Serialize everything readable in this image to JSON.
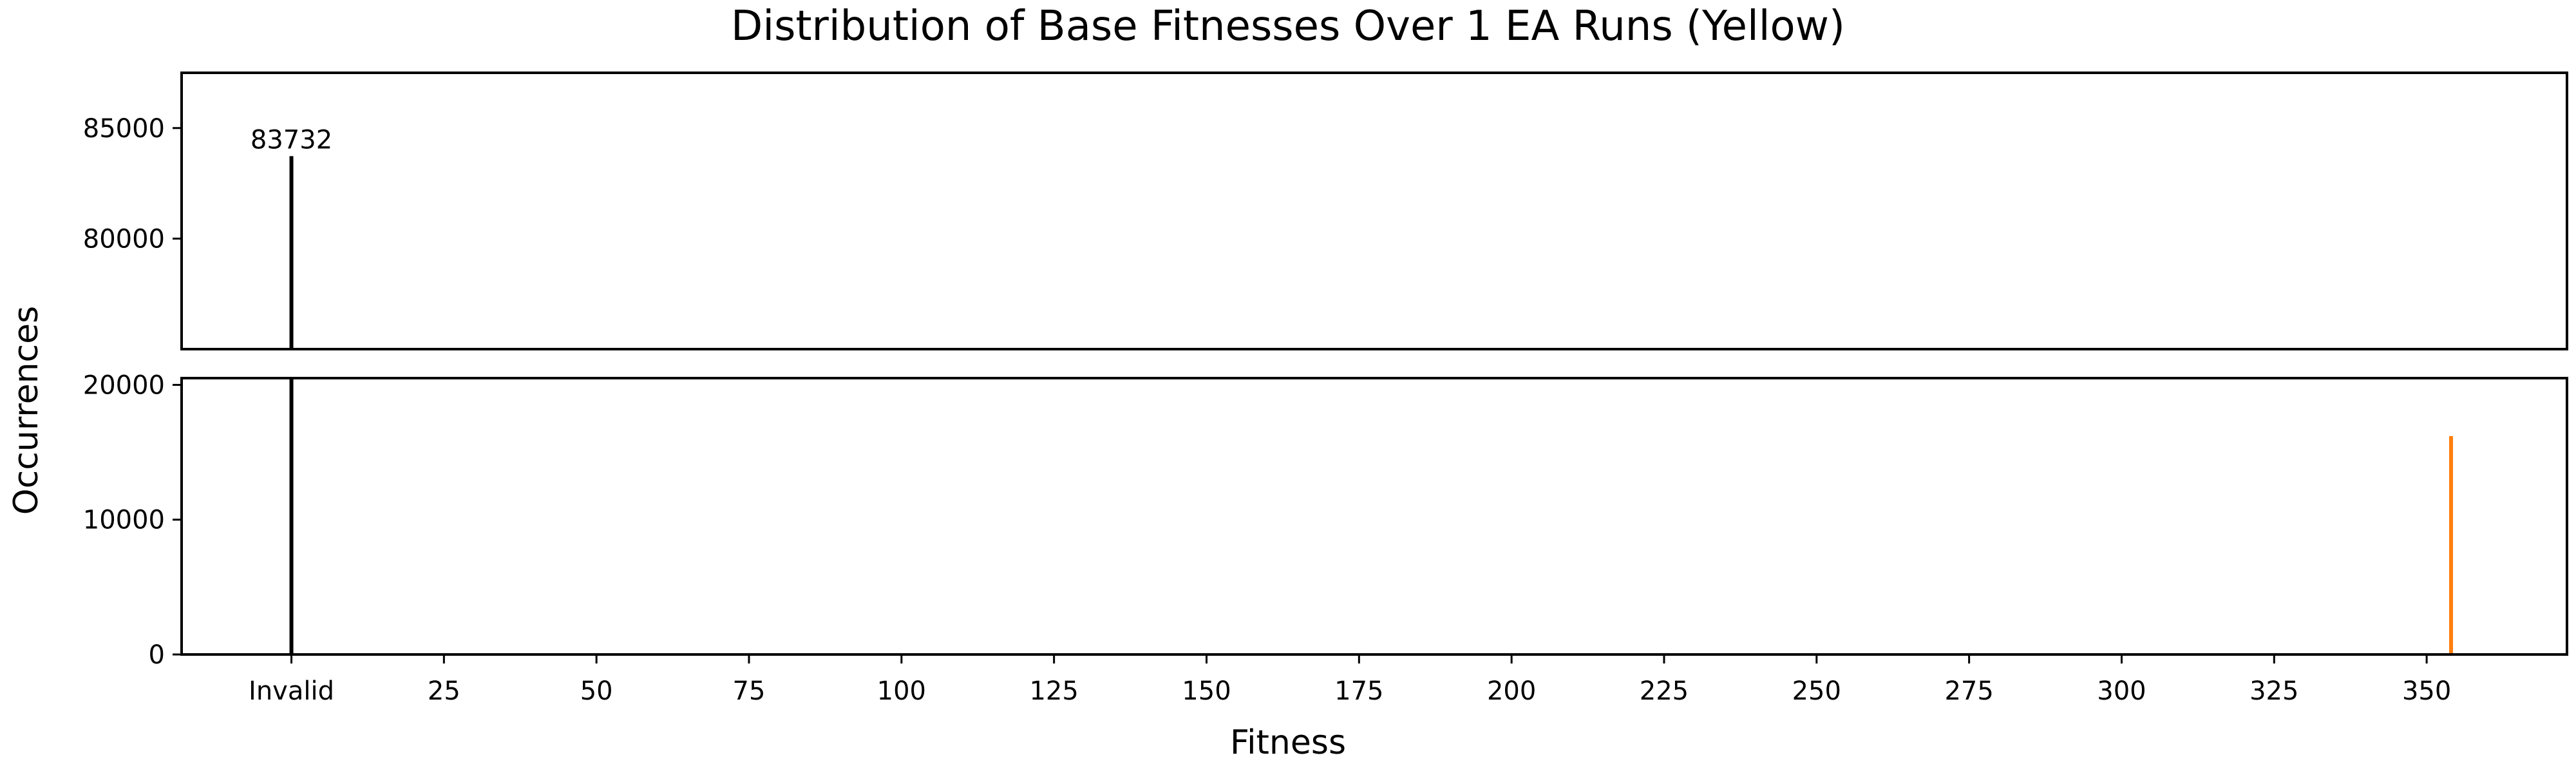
{
  "chart_data": {
    "type": "bar",
    "title": "Distribution of Base Fitnesses Over 1 EA Runs (Yellow)",
    "xlabel": "Fitness",
    "ylabel": "Occurrences",
    "broken_y_axis": true,
    "xlim": [
      -18,
      373
    ],
    "x_ticks": [
      0,
      25,
      50,
      75,
      100,
      125,
      150,
      175,
      200,
      225,
      250,
      275,
      300,
      325,
      350
    ],
    "x_tick_labels": [
      "Invalid",
      "25",
      "50",
      "75",
      "100",
      "125",
      "150",
      "175",
      "200",
      "225",
      "250",
      "275",
      "300",
      "325",
      "350"
    ],
    "upper_panel": {
      "ylim": [
        75000,
        87500
      ],
      "y_ticks": [
        80000,
        85000
      ],
      "y_tick_labels": [
        "80000",
        "85000"
      ]
    },
    "lower_panel": {
      "ylim": [
        0,
        20500
      ],
      "y_ticks": [
        0,
        10000,
        20000
      ],
      "y_tick_labels": [
        "0",
        "10000",
        "20000"
      ]
    },
    "bars": [
      {
        "x": 0,
        "value": 83732,
        "color": "#000000",
        "label": "83732"
      },
      {
        "x": 354,
        "value": 16200,
        "color": "#ff7f0e",
        "label": ""
      }
    ],
    "grid": false
  }
}
